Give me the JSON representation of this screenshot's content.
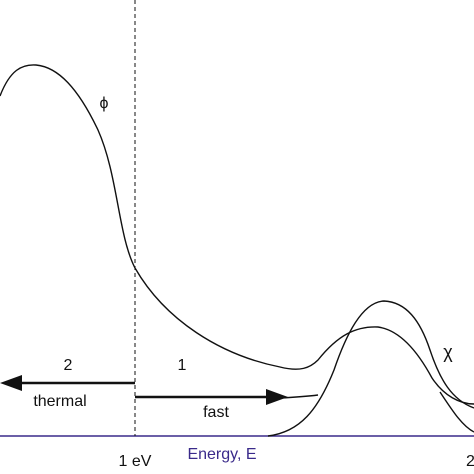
{
  "diagram": {
    "phi_label": "ϕ",
    "chi_label": "χ",
    "group2_number": "2",
    "group1_number": "1",
    "thermal_label": "thermal",
    "fast_label": "fast",
    "tick_label_1ev": "1 eV",
    "axis_label": "Energy, E",
    "tick_label_right": "2",
    "colors": {
      "curve": "#111111",
      "axis": "#3a2a8a",
      "axis_label": "#3a2a8a",
      "divider": "#111111"
    }
  }
}
